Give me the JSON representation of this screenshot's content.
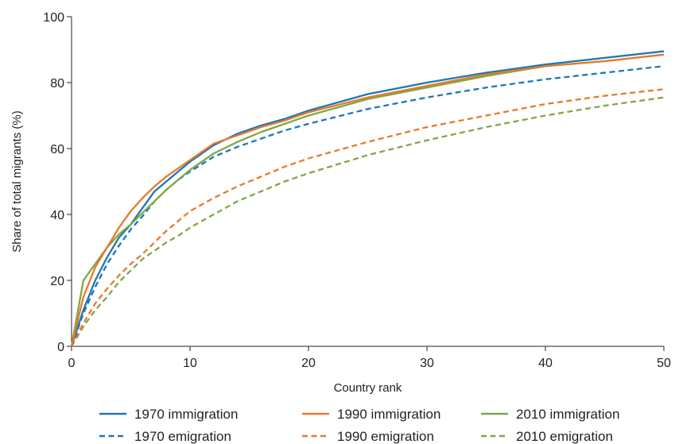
{
  "chart_data": {
    "type": "line",
    "xlabel": "Country rank",
    "ylabel": "Share of total migrants (%)",
    "xlim": [
      0,
      50
    ],
    "ylim": [
      0,
      100
    ],
    "xticks": [
      0,
      10,
      20,
      30,
      40,
      50
    ],
    "yticks": [
      0,
      20,
      40,
      60,
      80,
      100
    ],
    "grid": false,
    "legend_position": "bottom",
    "series": [
      {
        "name": "1970 immigration",
        "color": "#1f77b4",
        "dashed": false,
        "points": [
          [
            0,
            0
          ],
          [
            1,
            11
          ],
          [
            2,
            20
          ],
          [
            3,
            27
          ],
          [
            4,
            33
          ],
          [
            5,
            37
          ],
          [
            6,
            42
          ],
          [
            7,
            47
          ],
          [
            8,
            50
          ],
          [
            9,
            53
          ],
          [
            10,
            56
          ],
          [
            12,
            61
          ],
          [
            14,
            64.5
          ],
          [
            16,
            67
          ],
          [
            18,
            69
          ],
          [
            20,
            71.5
          ],
          [
            25,
            76.5
          ],
          [
            30,
            80
          ],
          [
            35,
            83
          ],
          [
            40,
            85.5
          ],
          [
            45,
            87.5
          ],
          [
            50,
            89.5
          ]
        ]
      },
      {
        "name": "1990 immigration",
        "color": "#e8792b",
        "dashed": false,
        "points": [
          [
            0,
            0
          ],
          [
            1,
            15
          ],
          [
            2,
            24
          ],
          [
            3,
            30
          ],
          [
            4,
            36
          ],
          [
            5,
            41
          ],
          [
            6,
            45
          ],
          [
            7,
            48.5
          ],
          [
            8,
            51.5
          ],
          [
            9,
            54
          ],
          [
            10,
            56.5
          ],
          [
            12,
            61.5
          ],
          [
            14,
            64
          ],
          [
            16,
            66.5
          ],
          [
            18,
            68.5
          ],
          [
            20,
            71
          ],
          [
            25,
            75.5
          ],
          [
            30,
            79
          ],
          [
            35,
            82.5
          ],
          [
            40,
            85
          ],
          [
            45,
            86.5
          ],
          [
            50,
            88.5
          ]
        ]
      },
      {
        "name": "2010 immigration",
        "color": "#7fa845",
        "dashed": false,
        "points": [
          [
            0,
            0
          ],
          [
            1,
            20
          ],
          [
            2,
            25
          ],
          [
            3,
            30
          ],
          [
            4,
            34
          ],
          [
            5,
            37
          ],
          [
            6,
            40.5
          ],
          [
            7,
            44
          ],
          [
            8,
            47.5
          ],
          [
            9,
            50.5
          ],
          [
            10,
            53.5
          ],
          [
            12,
            58.5
          ],
          [
            14,
            62
          ],
          [
            16,
            65
          ],
          [
            18,
            67.5
          ],
          [
            20,
            70
          ],
          [
            25,
            75
          ],
          [
            30,
            78.5
          ],
          [
            35,
            82
          ],
          [
            40,
            85
          ],
          [
            45,
            86.5
          ],
          [
            50,
            88.5
          ]
        ]
      },
      {
        "name": "1970 emigration",
        "color": "#1f77b4",
        "dashed": true,
        "points": [
          [
            0,
            0
          ],
          [
            1,
            10
          ],
          [
            2,
            18
          ],
          [
            3,
            25
          ],
          [
            4,
            30.5
          ],
          [
            5,
            35.5
          ],
          [
            6,
            39.5
          ],
          [
            7,
            44
          ],
          [
            8,
            47.5
          ],
          [
            9,
            50.5
          ],
          [
            10,
            53
          ],
          [
            12,
            57.5
          ],
          [
            14,
            60.5
          ],
          [
            16,
            63
          ],
          [
            18,
            65.5
          ],
          [
            20,
            67.5
          ],
          [
            25,
            72
          ],
          [
            30,
            75.5
          ],
          [
            35,
            78.5
          ],
          [
            40,
            81
          ],
          [
            45,
            83
          ],
          [
            50,
            85
          ]
        ]
      },
      {
        "name": "1990 emigration",
        "color": "#e8792b",
        "dashed": true,
        "points": [
          [
            0,
            0
          ],
          [
            1,
            7
          ],
          [
            2,
            13
          ],
          [
            3,
            17.5
          ],
          [
            4,
            21.5
          ],
          [
            5,
            25
          ],
          [
            6,
            28
          ],
          [
            7,
            31.5
          ],
          [
            8,
            35
          ],
          [
            9,
            38
          ],
          [
            10,
            41
          ],
          [
            12,
            45
          ],
          [
            14,
            48.5
          ],
          [
            16,
            51.5
          ],
          [
            18,
            54.5
          ],
          [
            20,
            57
          ],
          [
            25,
            62
          ],
          [
            30,
            66.5
          ],
          [
            35,
            70
          ],
          [
            40,
            73.5
          ],
          [
            45,
            76
          ],
          [
            50,
            78
          ]
        ]
      },
      {
        "name": "2010 emigration",
        "color": "#7fa845",
        "dashed": true,
        "points": [
          [
            0,
            0
          ],
          [
            1,
            6
          ],
          [
            2,
            11
          ],
          [
            3,
            15
          ],
          [
            4,
            19.5
          ],
          [
            5,
            23
          ],
          [
            6,
            26.5
          ],
          [
            7,
            29
          ],
          [
            8,
            31.5
          ],
          [
            9,
            33.5
          ],
          [
            10,
            36
          ],
          [
            12,
            40
          ],
          [
            14,
            44
          ],
          [
            16,
            47
          ],
          [
            18,
            50
          ],
          [
            20,
            52.5
          ],
          [
            25,
            58
          ],
          [
            30,
            62.5
          ],
          [
            35,
            66.5
          ],
          [
            40,
            70
          ],
          [
            45,
            73
          ],
          [
            50,
            75.5
          ]
        ]
      }
    ]
  }
}
